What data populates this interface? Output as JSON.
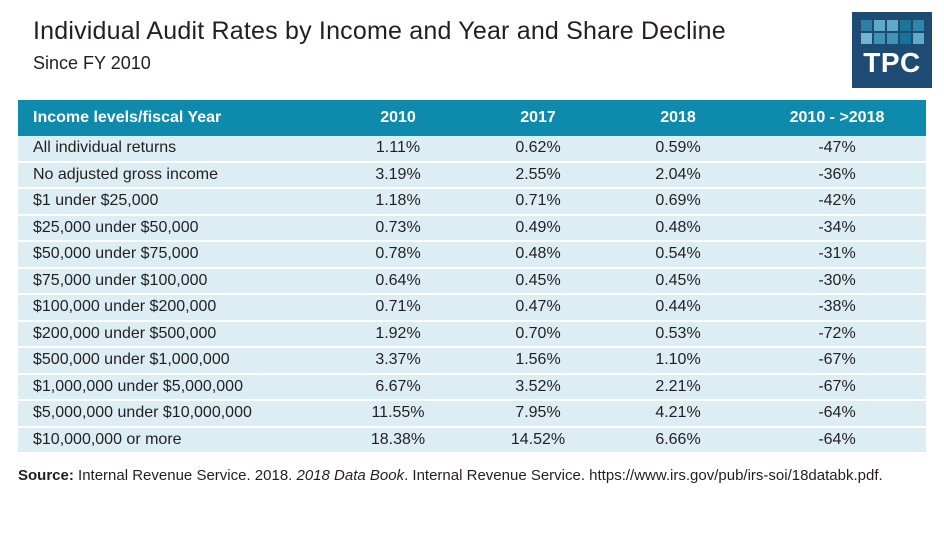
{
  "page": {
    "title": "Individual Audit Rates by Income and Year and Share Decline",
    "subtitle": "Since FY 2010"
  },
  "logo": {
    "text": "TPC",
    "bg_color": "#1E4B73",
    "grid_colors": [
      [
        "#2E7FA5",
        "#5FA9C9",
        "#5FA9C9",
        "#1F7298",
        "#2E86AC"
      ],
      [
        "#74B4CE",
        "#3E93B6",
        "#3E93B6",
        "#17729C",
        "#5FA9C9"
      ]
    ]
  },
  "colors": {
    "header_bg": "#0E8BAC",
    "row_bg": "#DCEDF4",
    "header_text": "#FFFFFF",
    "body_text": "#231F20"
  },
  "chart_data": {
    "type": "table",
    "title": "Individual Audit Rates by Income and Year and Share Decline Since FY 2010",
    "columns": [
      "Income levels/fiscal Year",
      "2010",
      "2017",
      "2018",
      "2010 - >2018"
    ],
    "rows": [
      [
        "All individual returns",
        "1.11%",
        "0.62%",
        "0.59%",
        "-47%"
      ],
      [
        "No adjusted gross income",
        "3.19%",
        "2.55%",
        "2.04%",
        "-36%"
      ],
      [
        "$1 under $25,000",
        "1.18%",
        "0.71%",
        "0.69%",
        "-42%"
      ],
      [
        "$25,000 under $50,000",
        "0.73%",
        "0.49%",
        "0.48%",
        "-34%"
      ],
      [
        "$50,000 under $75,000",
        "0.78%",
        "0.48%",
        "0.54%",
        "-31%"
      ],
      [
        "$75,000 under $100,000",
        "0.64%",
        "0.45%",
        "0.45%",
        "-30%"
      ],
      [
        "$100,000 under $200,000",
        "0.71%",
        "0.47%",
        "0.44%",
        "-38%"
      ],
      [
        "$200,000 under $500,000",
        "1.92%",
        "0.70%",
        "0.53%",
        "-72%"
      ],
      [
        "$500,000 under $1,000,000",
        "3.37%",
        "1.56%",
        "1.10%",
        "-67%"
      ],
      [
        "$1,000,000 under $5,000,000",
        "6.67%",
        "3.52%",
        "2.21%",
        "-67%"
      ],
      [
        "$5,000,000 under $10,000,000",
        "11.55%",
        "7.95%",
        "4.21%",
        "-64%"
      ],
      [
        "$10,000,000 or more",
        "18.38%",
        "14.52%",
        "6.66%",
        "-64%"
      ]
    ]
  },
  "source": {
    "label": "Source:",
    "text_before_italic": " Internal Revenue Service. 2018. ",
    "italic": "2018 Data Book",
    "text_after_italic": ". Internal Revenue Service. https://www.irs.gov/pub/irs-soi/18databk.pdf."
  }
}
